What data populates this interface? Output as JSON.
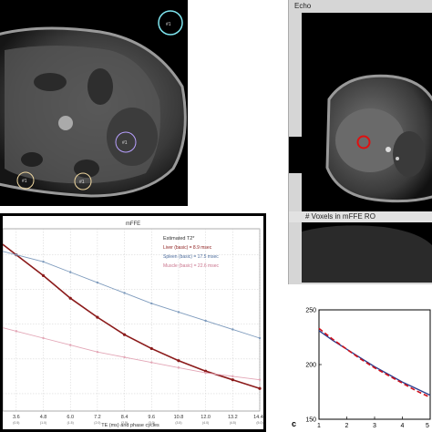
{
  "echo_window": {
    "title": "Echo",
    "lower_title": "# Voxels in mFFE RO"
  },
  "panel_a": {
    "roi_labels": [
      "#1",
      "#1",
      "#1",
      "#1"
    ]
  },
  "panel_c": {
    "label": "c"
  },
  "colors": {
    "liver": "#8b1a1a",
    "spleen": "#7e9bbd",
    "muscle": "#e3a6b6",
    "roi_cyan": "#7fe6f0",
    "roi_red": "#e01010",
    "voxel_line": "#2c3e8f",
    "voxel_fit": "#d0101a"
  },
  "chart_data": [
    {
      "type": "line",
      "title": "mFFE",
      "legend_title": "Estimated T2*",
      "legend_position": "top-right",
      "xlabel": "TE (ms) and phase cycles",
      "x_tick_labels": [
        "3.6",
        "4.8",
        "6.0",
        "7.2",
        "8.4",
        "9.6",
        "10.8",
        "12.0",
        "13.2",
        "14.40"
      ],
      "x_tick_sublabels": [
        "(0.5)",
        "(1.0)",
        "(1.5)",
        "(2.0)",
        "(2.5)",
        "(3.0)",
        "(3.5)",
        "(4.0)",
        "(4.5)",
        "(5.0)"
      ],
      "grid": true,
      "series": [
        {
          "name": "Liver (basic) = 8.9 msec",
          "color": "#8b1a1a",
          "x": [
            3.6,
            4.8,
            6.0,
            7.2,
            8.4,
            9.6,
            10.8,
            12.0,
            13.2,
            14.4
          ],
          "values": [
            100,
            88,
            75,
            64,
            54,
            46,
            39,
            33,
            28,
            23
          ]
        },
        {
          "name": "Spleen (basic) = 17.5 msec",
          "color": "#7e9bbd",
          "x": [
            3.6,
            4.8,
            6.0,
            7.2,
            8.4,
            9.6,
            10.8,
            12.0,
            13.2,
            14.4
          ],
          "values": [
            100,
            96,
            90,
            84,
            78,
            72,
            67,
            62,
            57,
            52
          ]
        },
        {
          "name": "Muscle (basic) = 22.6 msec",
          "color": "#e3a6b6",
          "x": [
            3.6,
            4.8,
            6.0,
            7.2,
            8.4,
            9.6,
            10.8,
            12.0,
            13.2,
            14.4
          ],
          "values": [
            56,
            52,
            48,
            44,
            41,
            38,
            35,
            32,
            30,
            28
          ]
        }
      ]
    },
    {
      "type": "line",
      "title": "# Voxels in mFFE RO",
      "x_tick_labels": [
        "1",
        "2",
        "3",
        "4",
        "5"
      ],
      "y_tick_labels": [
        "150",
        "200",
        "250"
      ],
      "xlim": [
        1,
        5
      ],
      "ylim": [
        150,
        250
      ],
      "grid": false,
      "series": [
        {
          "color": "#2c3e8f",
          "x": [
            1,
            1.5,
            2,
            2.5,
            3,
            3.5,
            4,
            4.5,
            5
          ],
          "values": [
            231,
            222,
            214,
            206,
            198,
            191,
            184,
            178,
            172
          ]
        },
        {
          "color": "#d0101a",
          "style": "dashed",
          "x": [
            1,
            1.5,
            2,
            2.5,
            3,
            3.5,
            4,
            4.5,
            5
          ],
          "values": [
            233,
            223,
            214,
            205,
            197,
            190,
            183,
            176,
            170
          ]
        }
      ]
    }
  ]
}
